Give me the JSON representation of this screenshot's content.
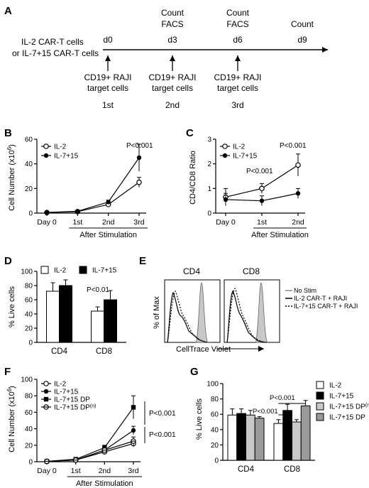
{
  "panel_letters": {
    "A": "A",
    "B": "B",
    "C": "C",
    "D": "D",
    "E": "E",
    "F": "F",
    "G": "G"
  },
  "timeline": {
    "left_line1": "IL-2 CAR-T cells",
    "left_line2": "or IL-7+15 CAR-T cells",
    "days": [
      "d0",
      "d3",
      "d6",
      "d9"
    ],
    "top_labels": [
      {
        "line1": "Count",
        "line2": "FACS"
      },
      {
        "line1": "Count",
        "line2": "FACS"
      },
      {
        "line1": "Count",
        "line2": ""
      }
    ],
    "targets": [
      {
        "line1": "CD19+ RAJI",
        "line2": "target cells",
        "ord": "1st"
      },
      {
        "line1": "CD19+ RAJI",
        "line2": "target cells",
        "ord": "2nd"
      },
      {
        "line1": "CD19+ RAJI",
        "line2": "target cells",
        "ord": "3rd"
      }
    ]
  },
  "chart_data": [
    {
      "id": "B",
      "type": "line",
      "xlabel": "After Stimulation",
      "ylabel": "Cell Number (x10⁶)",
      "categories": [
        "Day 0",
        "1st",
        "2nd",
        "3rd"
      ],
      "ylim": [
        0,
        60
      ],
      "yticks": [
        "0",
        "20",
        "40",
        "60"
      ],
      "series": [
        {
          "name": "IL-2",
          "marker": "open",
          "values": [
            0.5,
            1.2,
            7,
            25
          ],
          "errors": [
            0.3,
            0.5,
            1.5,
            4
          ]
        },
        {
          "name": "IL-7+15",
          "marker": "filled",
          "values": [
            0.5,
            1.5,
            9,
            45
          ],
          "errors": [
            0.3,
            0.5,
            1.5,
            11
          ]
        }
      ],
      "annotations": [
        {
          "text": "P<0.001",
          "at": "3rd"
        }
      ]
    },
    {
      "id": "C",
      "type": "line",
      "xlabel": "After Stimulation",
      "ylabel": "CD4/CD8 Ratio",
      "categories": [
        "Day 0",
        "1st",
        "2nd"
      ],
      "ylim": [
        0,
        3
      ],
      "yticks": [
        "0",
        "1",
        "2",
        "3"
      ],
      "series": [
        {
          "name": "IL-2",
          "marker": "open",
          "values": [
            0.65,
            1.0,
            1.95
          ],
          "errors": [
            0.35,
            0.2,
            0.45
          ]
        },
        {
          "name": "IL-7+15",
          "marker": "filled",
          "values": [
            0.55,
            0.5,
            0.8
          ],
          "errors": [
            0.25,
            0.2,
            0.2
          ]
        }
      ],
      "annotations": [
        {
          "text": "P<0.001",
          "at": "1st"
        },
        {
          "text": "P<0.001",
          "at": "2nd"
        }
      ]
    },
    {
      "id": "D",
      "type": "bar",
      "ylabel": "% Live cells",
      "categories": [
        "CD4",
        "CD8"
      ],
      "ylim": [
        0,
        100
      ],
      "yticks": [
        "0",
        "20",
        "40",
        "60",
        "80",
        "100"
      ],
      "series": [
        {
          "name": "IL-2",
          "fill": "#ffffff",
          "values": [
            72,
            44
          ],
          "errors": [
            12,
            6
          ]
        },
        {
          "name": "IL-7+15",
          "fill": "#000000",
          "values": [
            80,
            60
          ],
          "errors": [
            8,
            13
          ]
        }
      ],
      "annotations": [
        {
          "text": "P<0.01",
          "at": "CD8"
        }
      ]
    },
    {
      "id": "E",
      "type": "histogram",
      "ylabel": "% of Max",
      "xlabel": "CellTrace Violet",
      "panels": [
        "CD4",
        "CD8"
      ],
      "legend": [
        "No Stim",
        "IL-2 CAR-T + RAJI",
        "IL-7+15 CAR-T + RAJI"
      ]
    },
    {
      "id": "F",
      "type": "line",
      "xlabel": "After Stimulation",
      "ylabel": "Cell Number (x10⁶)",
      "categories": [
        "Day 0",
        "1st",
        "2nd",
        "3rd"
      ],
      "ylim": [
        0,
        100
      ],
      "yticks": [
        "0",
        "20",
        "40",
        "60",
        "80",
        "100"
      ],
      "series": [
        {
          "name": "IL-2",
          "marker": "open",
          "values": [
            0.5,
            2,
            12,
            22
          ],
          "errors": [
            0.3,
            0.5,
            2,
            4
          ]
        },
        {
          "name": "IL-7+15",
          "marker": "filled",
          "values": [
            0.5,
            2,
            14,
            38
          ],
          "errors": [
            0.3,
            0.5,
            2,
            5
          ]
        },
        {
          "name": "IL-7+15 DP",
          "marker": "filled-square",
          "values": [
            0.5,
            3,
            17,
            66
          ],
          "errors": [
            0.3,
            0.5,
            3,
            14
          ]
        },
        {
          "name": "IL-7+15 DP",
          "name_sup": "(n)",
          "marker": "half",
          "values": [
            0.5,
            2,
            14,
            25
          ],
          "errors": [
            0.3,
            0.5,
            2,
            5
          ]
        }
      ],
      "annotations": [
        {
          "text": "P<0.001"
        },
        {
          "text": "P<0.001"
        }
      ]
    },
    {
      "id": "G",
      "type": "bar",
      "ylabel": "% Live cells",
      "categories": [
        "CD4",
        "CD8"
      ],
      "ylim": [
        0,
        100
      ],
      "yticks": [
        "0",
        "20",
        "40",
        "60",
        "80",
        "100"
      ],
      "series": [
        {
          "name": "IL-2",
          "fill": "#ffffff",
          "values": [
            59,
            48
          ],
          "errors": [
            8,
            5
          ]
        },
        {
          "name": "IL-7+15",
          "fill": "#000000",
          "values": [
            61,
            65
          ],
          "errors": [
            6,
            8
          ]
        },
        {
          "name": "IL-7+15 DP",
          "name_sup": "(n)",
          "fill": "#c8c8c8",
          "values": [
            59,
            50
          ],
          "errors": [
            6,
            3
          ]
        },
        {
          "name": "IL-7+15 DP",
          "fill": "#9a9a9a",
          "values": [
            55,
            71
          ],
          "errors": [
            2,
            7
          ]
        }
      ],
      "annotations": [
        {
          "text": "P<0.001"
        },
        {
          "text": "P<0.001"
        }
      ]
    }
  ]
}
